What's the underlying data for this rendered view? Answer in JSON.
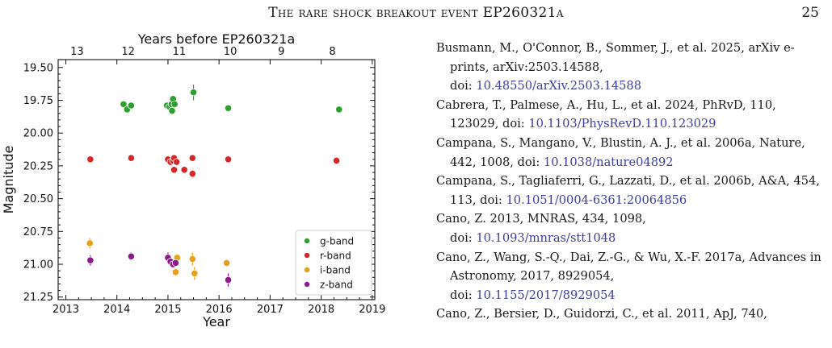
{
  "header": {
    "title": "The rare shock breakout event EP260321a",
    "page_number": "25"
  },
  "chart_data": {
    "type": "scatter",
    "title": "",
    "xlabel": "Year",
    "ylabel": "Magnitude",
    "top_xlabel": "Years before EP260321a",
    "xlim": [
      2012.85,
      2019.05
    ],
    "ylim": [
      21.27,
      19.44
    ],
    "y_inverted": true,
    "x_ticks": [
      "2013",
      "2014",
      "2015",
      "2016",
      "2017",
      "2018",
      "2019"
    ],
    "y_ticks": [
      "19.50",
      "19.75",
      "20.00",
      "20.25",
      "20.50",
      "20.75",
      "21.00",
      "21.25"
    ],
    "top_ticks": [
      "13",
      "12",
      "11",
      "10",
      "9",
      "8"
    ],
    "legend_position": "lower right",
    "series": [
      {
        "name": "g-band",
        "color": "#2ca02c",
        "points": [
          [
            2014.13,
            19.78
          ],
          [
            2014.2,
            19.82
          ],
          [
            2014.28,
            19.79
          ],
          [
            2014.98,
            19.79
          ],
          [
            2015.03,
            19.8
          ],
          [
            2015.07,
            19.78
          ],
          [
            2015.1,
            19.74
          ],
          [
            2015.13,
            19.78
          ],
          [
            2015.08,
            19.83
          ],
          [
            2015.5,
            19.69
          ],
          [
            2016.18,
            19.81
          ],
          [
            2018.35,
            19.82
          ]
        ],
        "errors": [
          0.02,
          0.02,
          0.02,
          0.02,
          0.02,
          0.02,
          0.02,
          0.02,
          0.02,
          0.06,
          0.02,
          0.02
        ]
      },
      {
        "name": "r-band",
        "color": "#d62728",
        "points": [
          [
            2013.48,
            20.2
          ],
          [
            2014.28,
            20.19
          ],
          [
            2015.0,
            20.2
          ],
          [
            2015.05,
            20.22
          ],
          [
            2015.1,
            20.21
          ],
          [
            2015.12,
            20.19
          ],
          [
            2015.17,
            20.22
          ],
          [
            2015.12,
            20.28
          ],
          [
            2015.32,
            20.28
          ],
          [
            2015.48,
            20.19
          ],
          [
            2015.48,
            20.31
          ],
          [
            2016.18,
            20.2
          ],
          [
            2018.3,
            20.21
          ]
        ],
        "errors": [
          0.02,
          0.02,
          0.02,
          0.02,
          0.02,
          0.02,
          0.02,
          0.02,
          0.02,
          0.02,
          0.03,
          0.02,
          0.02
        ]
      },
      {
        "name": "i-band",
        "color": "#e6a118",
        "points": [
          [
            2013.47,
            20.84
          ],
          [
            2015.18,
            20.95
          ],
          [
            2015.15,
            21.06
          ],
          [
            2015.48,
            20.96
          ],
          [
            2015.52,
            21.07
          ],
          [
            2016.15,
            20.99
          ]
        ],
        "errors": [
          0.04,
          0.03,
          0.03,
          0.05,
          0.05,
          0.03
        ]
      },
      {
        "name": "z-band",
        "color": "#8b1a8b",
        "points": [
          [
            2013.48,
            20.97
          ],
          [
            2014.28,
            20.94
          ],
          [
            2015.0,
            20.95
          ],
          [
            2015.05,
            20.98
          ],
          [
            2015.1,
            21.0
          ],
          [
            2015.15,
            20.99
          ],
          [
            2016.18,
            21.12
          ]
        ],
        "errors": [
          0.04,
          0.03,
          0.04,
          0.03,
          0.03,
          0.03,
          0.05
        ]
      }
    ]
  },
  "references": [
    {
      "text": "Busmann, M., O'Connor, B., Sommer, J., et al. 2025, arXiv e-prints, arXiv:2503.14588,",
      "doi": "10.48550/arXiv.2503.14588",
      "doi_break": true
    },
    {
      "text": "Cabrera, T., Palmese, A., Hu, L., et al. 2024, PhRvD, 110, 123029, doi:",
      "doi": "10.1103/PhysRevD.110.123029",
      "doi_break": false
    },
    {
      "text": "Campana, S., Mangano, V., Blustin, A. J., et al. 2006a, Nature, 442, 1008, doi:",
      "doi": "10.1038/nature04892",
      "doi_break": false
    },
    {
      "text": "Campana, S., Tagliaferri, G., Lazzati, D., et al. 2006b, A&A, 454, 113, doi:",
      "doi": "10.1051/0004-6361:20064856",
      "doi_break": false
    },
    {
      "text": "Cano, Z. 2013, MNRAS, 434, 1098,",
      "doi": "10.1093/mnras/stt1048",
      "doi_break": true
    },
    {
      "text": "Cano, Z., Wang, S.-Q., Dai, Z.-G., & Wu, X.-F. 2017a, Advances in Astronomy, 2017, 8929054,",
      "doi": "10.1155/2017/8929054",
      "doi_break": true
    },
    {
      "text": "Cano, Z., Bersier, D., Guidorzi, C., et al. 2011, ApJ, 740,",
      "doi": "",
      "doi_break": false
    }
  ]
}
